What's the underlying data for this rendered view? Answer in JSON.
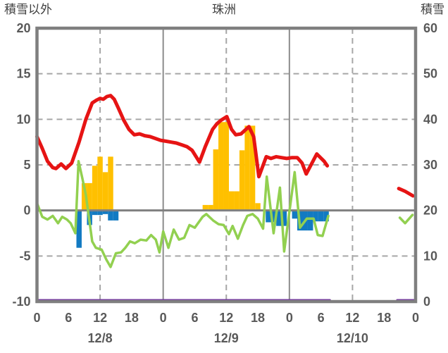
{
  "chart_data": {
    "type": "line+bar",
    "title": "珠洲",
    "left_axis": {
      "label": "積雪以外",
      "ticks": [
        "20",
        "15",
        "10",
        "5",
        "0",
        "-5",
        "-10"
      ],
      "tick_values": [
        20,
        15,
        10,
        5,
        0,
        -5,
        -10
      ],
      "range": [
        -10,
        20
      ]
    },
    "right_axis": {
      "label": "積雪",
      "ticks": [
        "60",
        "50",
        "40",
        "30",
        "20",
        "10",
        "0"
      ],
      "tick_values": [
        60,
        50,
        40,
        30,
        20,
        10,
        0
      ],
      "range": [
        0,
        60
      ]
    },
    "x_axis": {
      "hours_span": 72,
      "tick_hours": [
        0,
        6,
        12,
        18,
        24,
        30,
        36,
        42,
        48,
        54,
        60,
        66,
        72
      ],
      "tick_labels": [
        "0",
        "6",
        "12",
        "18",
        "0",
        "6",
        "12",
        "18",
        "0",
        "6",
        "12",
        "18",
        "0"
      ],
      "date_labels": [
        {
          "text": "12/8",
          "hour": 12
        },
        {
          "text": "12/9",
          "hour": 36
        },
        {
          "text": "12/10",
          "hour": 60
        }
      ]
    },
    "grid": {
      "v_dashed_hours": [
        12,
        36,
        60
      ],
      "v_solid_hours": [
        24,
        48
      ],
      "h_dashed_values": [
        15,
        10,
        5,
        -5
      ],
      "dash_color": "#a6a6a6",
      "solid_color": "#8c8c8c",
      "zero_color": "#808080",
      "frame_color": "#7f7f7f",
      "tick_text_color": "#595959"
    },
    "series": [
      {
        "name": "precipitation-bars",
        "type": "bar",
        "axis": "left",
        "color": "#ffc000",
        "values": [
          [
            9,
            3.0
          ],
          [
            10,
            3.0
          ],
          [
            11,
            4.9
          ],
          [
            12,
            5.9
          ],
          [
            13,
            4.2
          ],
          [
            14,
            5.9
          ],
          [
            32,
            0.6
          ],
          [
            33,
            0.6
          ],
          [
            34,
            6.7
          ],
          [
            35,
            9.7
          ],
          [
            36,
            9.7
          ],
          [
            37,
            2.1
          ],
          [
            38,
            2.1
          ],
          [
            39,
            6.6
          ],
          [
            40,
            9.3
          ],
          [
            41,
            9.3
          ],
          [
            42,
            0.8
          ]
        ]
      },
      {
        "name": "negative-blue-bars",
        "type": "bar",
        "axis": "left",
        "color": "#127ac2",
        "values": [
          [
            8,
            -4.1
          ],
          [
            10,
            -1.6
          ],
          [
            11,
            -0.5
          ],
          [
            12,
            -0.5
          ],
          [
            13,
            -0.4
          ],
          [
            14,
            -1.1
          ],
          [
            15,
            -1.1
          ],
          [
            44,
            -1.3
          ],
          [
            45,
            -1.3
          ],
          [
            46,
            -1.7
          ],
          [
            47,
            -1.7
          ],
          [
            49,
            -0.9
          ],
          [
            50,
            -2.2
          ],
          [
            51,
            -2.2
          ],
          [
            52,
            -2.2
          ],
          [
            53,
            -1.2
          ],
          [
            54,
            -1.2
          ],
          [
            55,
            -1.2
          ]
        ]
      },
      {
        "name": "snow-depth-line",
        "type": "line",
        "axis": "right",
        "color": "#7030a0",
        "width": 3,
        "segments": [
          [
            [
              0,
              0
            ],
            [
              55.7,
              0
            ]
          ],
          [
            [
              68.5,
              0
            ],
            [
              72,
              0
            ]
          ]
        ]
      },
      {
        "name": "green-line",
        "type": "line",
        "axis": "left",
        "color": "#92d050",
        "width": 3.5,
        "segments": [
          [
            [
              0,
              0.8
            ],
            [
              1,
              -0.7
            ],
            [
              2,
              -1.0
            ],
            [
              3,
              -0.6
            ],
            [
              4,
              -1.4
            ],
            [
              4.8,
              -0.7
            ],
            [
              5.7,
              -1.0
            ],
            [
              6.4,
              -1.4
            ],
            [
              7.3,
              -2.5
            ],
            [
              7.9,
              5.4
            ],
            [
              8.6,
              3.6
            ],
            [
              9.3,
              1.7
            ],
            [
              10.5,
              -3.4
            ],
            [
              11.2,
              -4.1
            ],
            [
              12.3,
              -4.3
            ],
            [
              13.2,
              -5.4
            ],
            [
              14,
              -6.2
            ],
            [
              15,
              -4.7
            ],
            [
              16,
              -4.6
            ],
            [
              16.8,
              -4.1
            ],
            [
              17.7,
              -3.4
            ],
            [
              18.6,
              -3.6
            ],
            [
              19.7,
              -3.2
            ],
            [
              20.8,
              -3.3
            ],
            [
              21.7,
              -2.7
            ],
            [
              22.6,
              -3.2
            ],
            [
              23.3,
              -4.6
            ],
            [
              24,
              -2.3
            ],
            [
              25,
              -4.1
            ],
            [
              26,
              -2.1
            ],
            [
              27,
              -3.2
            ],
            [
              28,
              -3.0
            ],
            [
              29,
              -1.6
            ],
            [
              30,
              -1.9
            ],
            [
              31.5,
              -0.7
            ],
            [
              32.2,
              -0.4
            ],
            [
              33.5,
              -1.1
            ],
            [
              34.5,
              -1.5
            ],
            [
              35.5,
              -1.6
            ],
            [
              36.5,
              -2.6
            ],
            [
              37.2,
              -1.7
            ],
            [
              38.2,
              -3.1
            ],
            [
              39.2,
              -1.6
            ],
            [
              40,
              -0.6
            ],
            [
              41,
              -0.4
            ],
            [
              42,
              -0.9
            ],
            [
              43,
              -2.0
            ],
            [
              43.7,
              3.7
            ],
            [
              45,
              -2.5
            ],
            [
              46.2,
              2.5
            ],
            [
              47,
              -4.5
            ],
            [
              49,
              4.2
            ],
            [
              50,
              -1.9
            ],
            [
              51.3,
              -0.9
            ],
            [
              52.6,
              -0.9
            ],
            [
              53.4,
              -2.7
            ],
            [
              54.3,
              -2.8
            ],
            [
              55.4,
              -0.6
            ]
          ],
          [
            [
              69,
              -0.8
            ],
            [
              70,
              -1.4
            ],
            [
              71.4,
              -0.5
            ]
          ]
        ]
      },
      {
        "name": "temperature-line",
        "type": "line",
        "axis": "left",
        "color": "#e61414",
        "width": 5,
        "segments": [
          [
            [
              0,
              8.1
            ],
            [
              1,
              6.8
            ],
            [
              2,
              5.4
            ],
            [
              3,
              4.7
            ],
            [
              3.6,
              4.6
            ],
            [
              4.6,
              5.1
            ],
            [
              5.5,
              4.6
            ],
            [
              6.6,
              5.2
            ],
            [
              8,
              7.5
            ],
            [
              9.3,
              10.0
            ],
            [
              10.5,
              11.8
            ],
            [
              11.3,
              12.1
            ],
            [
              12,
              12.3
            ],
            [
              12.6,
              12.2
            ],
            [
              13.3,
              12.5
            ],
            [
              14,
              12.6
            ],
            [
              14.7,
              12.2
            ],
            [
              15.5,
              11.2
            ],
            [
              16.5,
              9.9
            ],
            [
              17.5,
              8.9
            ],
            [
              18.5,
              8.3
            ],
            [
              19.5,
              8.4
            ],
            [
              20.5,
              8.2
            ],
            [
              21.5,
              8.1
            ],
            [
              22.5,
              7.9
            ],
            [
              23.5,
              7.7
            ],
            [
              24.5,
              7.6
            ],
            [
              25.5,
              7.5
            ],
            [
              26.5,
              7.4
            ],
            [
              27.5,
              7.2
            ],
            [
              28.5,
              7.0
            ],
            [
              29.5,
              6.6
            ],
            [
              30.9,
              5.3
            ],
            [
              32,
              7.0
            ],
            [
              33.4,
              8.9
            ],
            [
              34.2,
              9.5
            ],
            [
              35,
              9.9
            ],
            [
              36.1,
              10.3
            ],
            [
              37,
              8.9
            ],
            [
              37.8,
              8.3
            ],
            [
              38.8,
              8.4
            ],
            [
              40.3,
              9.2
            ],
            [
              41.2,
              8.1
            ],
            [
              42.2,
              3.7
            ],
            [
              43.6,
              5.9
            ],
            [
              44.5,
              5.7
            ],
            [
              45.5,
              5.9
            ],
            [
              46.5,
              5.8
            ],
            [
              47.5,
              5.7
            ],
            [
              48.5,
              5.8
            ],
            [
              49.5,
              5.8
            ],
            [
              50.4,
              5.2
            ],
            [
              51.2,
              4.0
            ],
            [
              53.2,
              6.2
            ],
            [
              54.6,
              5.4
            ],
            [
              55.2,
              4.9
            ]
          ],
          [
            [
              68.8,
              2.4
            ],
            [
              70,
              2.1
            ],
            [
              71.5,
              1.6
            ]
          ]
        ]
      }
    ]
  }
}
